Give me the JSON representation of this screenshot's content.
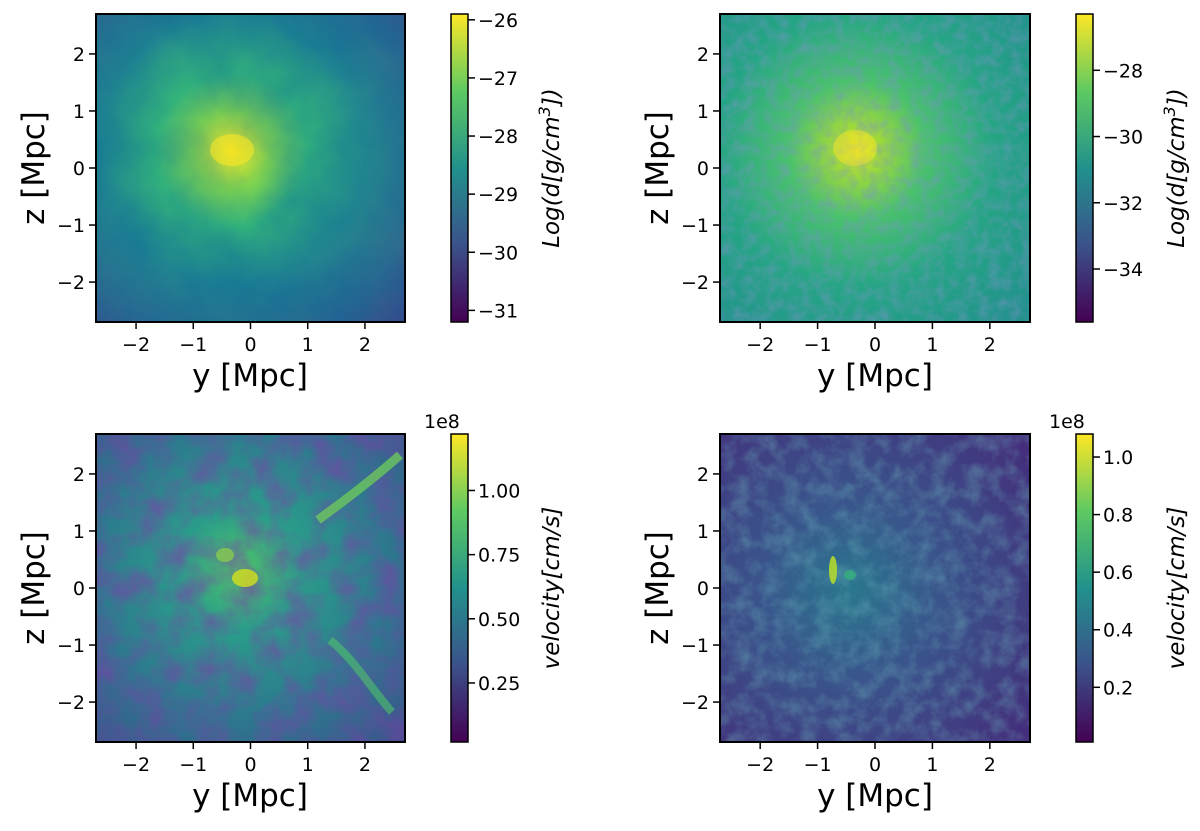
{
  "chart_data": [
    {
      "type": "heatmap",
      "panel": "top-left",
      "xlabel": "y [Mpc]",
      "ylabel": "z [Mpc]",
      "xlim": [
        -2.7,
        2.7
      ],
      "ylim": [
        -2.7,
        2.7
      ],
      "x_ticks": [
        "−2",
        "−1",
        "0",
        "1",
        "2"
      ],
      "y_ticks": [
        "−2",
        "−1",
        "0",
        "1",
        "2"
      ],
      "peak_position": [
        -0.3,
        0.2
      ],
      "colorbar": {
        "label": "Log(d[g/cm³])",
        "range": [
          -31.2,
          -25.9
        ],
        "ticks": [
          -26,
          -27,
          -28,
          -29,
          -30,
          -31
        ],
        "tick_labels": [
          "−26",
          "−27",
          "−28",
          "−29",
          "−30",
          "−31"
        ],
        "offset_text": "",
        "colormap": "viridis"
      }
    },
    {
      "type": "heatmap",
      "panel": "top-right",
      "xlabel": "y [Mpc]",
      "ylabel": "z [Mpc]",
      "xlim": [
        -2.7,
        2.7
      ],
      "ylim": [
        -2.7,
        2.7
      ],
      "x_ticks": [
        "−2",
        "−1",
        "0",
        "1",
        "2"
      ],
      "y_ticks": [
        "−2",
        "−1",
        "0",
        "1",
        "2"
      ],
      "peak_position": [
        -0.3,
        0.3
      ],
      "colorbar": {
        "label": "Log(d[g/cm³])",
        "range": [
          -35.6,
          -26.3
        ],
        "ticks": [
          -28,
          -30,
          -32,
          -34
        ],
        "tick_labels": [
          "−28",
          "−30",
          "−32",
          "−34"
        ],
        "offset_text": "",
        "colormap": "viridis"
      }
    },
    {
      "type": "heatmap",
      "panel": "bottom-left",
      "xlabel": "y [Mpc]",
      "ylabel": "z [Mpc]",
      "xlim": [
        -2.7,
        2.7
      ],
      "ylim": [
        -2.7,
        2.7
      ],
      "x_ticks": [
        "−2",
        "−1",
        "0",
        "1",
        "2"
      ],
      "y_ticks": [
        "−2",
        "−1",
        "0",
        "1",
        "2"
      ],
      "peak_position": [
        -0.1,
        0.1
      ],
      "colorbar": {
        "label": "velocity[cm/s]",
        "range": [
          0.02,
          1.22
        ],
        "ticks": [
          1.0,
          0.75,
          0.5,
          0.25
        ],
        "tick_labels": [
          "1.00",
          "0.75",
          "0.50",
          "0.25"
        ],
        "offset_text": "1e8",
        "colormap": "viridis"
      }
    },
    {
      "type": "heatmap",
      "panel": "bottom-right",
      "xlabel": "y [Mpc]",
      "ylabel": "z [Mpc]",
      "xlim": [
        -2.7,
        2.7
      ],
      "ylim": [
        -2.7,
        2.7
      ],
      "x_ticks": [
        "−2",
        "−1",
        "0",
        "1",
        "2"
      ],
      "y_ticks": [
        "−2",
        "−1",
        "0",
        "1",
        "2"
      ],
      "peak_position": [
        -0.8,
        0.3
      ],
      "colorbar": {
        "label": "velocity[cm/s]",
        "range": [
          0.01,
          1.08
        ],
        "ticks": [
          1.0,
          0.8,
          0.6,
          0.4,
          0.2
        ],
        "tick_labels": [
          "1.0",
          "0.8",
          "0.6",
          "0.4",
          "0.2"
        ],
        "offset_text": "1e8",
        "colormap": "viridis"
      }
    }
  ],
  "colors": {
    "viridis_dark": "#440154",
    "viridis_blue": "#3b528b",
    "viridis_teal": "#21918c",
    "viridis_green": "#5ec962",
    "viridis_yellow": "#fde725"
  }
}
